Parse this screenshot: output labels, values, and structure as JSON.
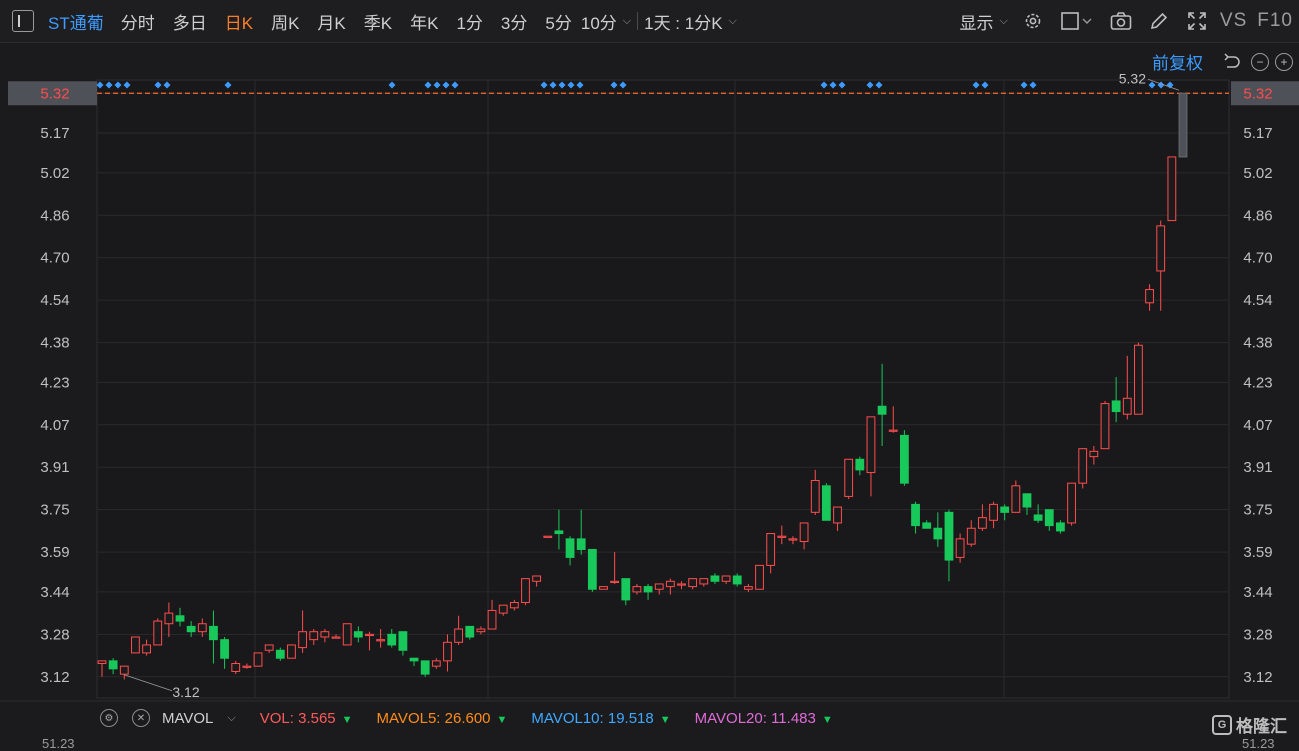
{
  "toolbar": {
    "stock_name": "ST通葡",
    "tabs": [
      "分时",
      "多日",
      "日K",
      "周K",
      "月K",
      "季K",
      "年K",
      "1分",
      "3分",
      "5分",
      "10分"
    ],
    "active_tab": "日K",
    "range_dropdown": "1天 : 1分K",
    "display_dropdown": "显示",
    "vs_label": "VS",
    "f10_label": "F10",
    "adjust_label": "前复权"
  },
  "colors": {
    "up": "#ff4d4d",
    "down": "#18c85a",
    "ma_vol": "#ff8c1a",
    "mavol10": "#3fa8ff",
    "mavol20": "#e06bd8",
    "price_line": "#ff6a2b",
    "event_marker": "#3d9bff"
  },
  "chart_data": {
    "type": "candlestick",
    "ylim": [
      3.04,
      5.37
    ],
    "yticks": [
      "5.32",
      "5.17",
      "5.02",
      "4.86",
      "4.70",
      "4.54",
      "4.38",
      "4.23",
      "4.07",
      "3.91",
      "3.75",
      "3.59",
      "3.44",
      "3.28",
      "3.12"
    ],
    "current_price": "5.32",
    "high_label": "5.32",
    "low_label": "3.12",
    "candles": [
      [
        3.17,
        3.18,
        3.12,
        3.17
      ],
      [
        3.18,
        3.15,
        3.13,
        3.19
      ],
      [
        3.13,
        3.16,
        3.11,
        3.16
      ],
      [
        3.21,
        3.27,
        3.21,
        3.27
      ],
      [
        3.21,
        3.24,
        3.2,
        3.26
      ],
      [
        3.24,
        3.33,
        3.24,
        3.34
      ],
      [
        3.32,
        3.36,
        3.27,
        3.4
      ],
      [
        3.35,
        3.33,
        3.31,
        3.38
      ],
      [
        3.31,
        3.29,
        3.27,
        3.33
      ],
      [
        3.29,
        3.32,
        3.27,
        3.34
      ],
      [
        3.31,
        3.26,
        3.17,
        3.37
      ],
      [
        3.26,
        3.19,
        3.15,
        3.27
      ],
      [
        3.14,
        3.17,
        3.13,
        3.18
      ],
      [
        3.16,
        3.16,
        3.15,
        3.17
      ],
      [
        3.16,
        3.21,
        3.16,
        3.21
      ],
      [
        3.22,
        3.24,
        3.21,
        3.24
      ],
      [
        3.22,
        3.19,
        3.18,
        3.23
      ],
      [
        3.19,
        3.24,
        3.19,
        3.24
      ],
      [
        3.23,
        3.29,
        3.21,
        3.37
      ],
      [
        3.26,
        3.29,
        3.24,
        3.3
      ],
      [
        3.27,
        3.29,
        3.25,
        3.3
      ],
      [
        3.27,
        3.27,
        3.27,
        3.28
      ],
      [
        3.24,
        3.32,
        3.24,
        3.32
      ],
      [
        3.29,
        3.27,
        3.25,
        3.31
      ],
      [
        3.28,
        3.28,
        3.22,
        3.29
      ],
      [
        3.26,
        3.26,
        3.23,
        3.3
      ],
      [
        3.28,
        3.24,
        3.23,
        3.3
      ],
      [
        3.29,
        3.22,
        3.2,
        3.29
      ],
      [
        3.19,
        3.18,
        3.16,
        3.19
      ],
      [
        3.18,
        3.13,
        3.12,
        3.18
      ],
      [
        3.16,
        3.18,
        3.15,
        3.19
      ],
      [
        3.18,
        3.25,
        3.14,
        3.28
      ],
      [
        3.25,
        3.3,
        3.24,
        3.35
      ],
      [
        3.31,
        3.27,
        3.26,
        3.31
      ],
      [
        3.29,
        3.3,
        3.28,
        3.31
      ],
      [
        3.3,
        3.37,
        3.3,
        3.41
      ],
      [
        3.36,
        3.39,
        3.35,
        3.39
      ],
      [
        3.38,
        3.4,
        3.37,
        3.41
      ],
      [
        3.4,
        3.49,
        3.39,
        3.49
      ],
      [
        3.48,
        3.5,
        3.46,
        3.5
      ],
      [
        3.65,
        3.65,
        3.65,
        3.65
      ],
      [
        3.67,
        3.66,
        3.6,
        3.75
      ],
      [
        3.64,
        3.57,
        3.54,
        3.65
      ],
      [
        3.64,
        3.6,
        3.58,
        3.75
      ],
      [
        3.6,
        3.45,
        3.44,
        3.6
      ],
      [
        3.45,
        3.46,
        3.45,
        3.46
      ],
      [
        3.48,
        3.48,
        3.47,
        3.59
      ],
      [
        3.49,
        3.41,
        3.39,
        3.49
      ],
      [
        3.44,
        3.46,
        3.43,
        3.47
      ],
      [
        3.46,
        3.44,
        3.41,
        3.47
      ],
      [
        3.45,
        3.47,
        3.43,
        3.47
      ],
      [
        3.46,
        3.48,
        3.43,
        3.49
      ],
      [
        3.47,
        3.47,
        3.45,
        3.48
      ],
      [
        3.46,
        3.49,
        3.45,
        3.49
      ],
      [
        3.47,
        3.49,
        3.46,
        3.49
      ],
      [
        3.5,
        3.48,
        3.47,
        3.51
      ],
      [
        3.48,
        3.5,
        3.47,
        3.5
      ],
      [
        3.5,
        3.47,
        3.46,
        3.51
      ],
      [
        3.45,
        3.46,
        3.44,
        3.47
      ],
      [
        3.45,
        3.54,
        3.45,
        3.54
      ],
      [
        3.54,
        3.66,
        3.51,
        3.66
      ],
      [
        3.65,
        3.65,
        3.62,
        3.69
      ],
      [
        3.64,
        3.64,
        3.62,
        3.65
      ],
      [
        3.63,
        3.7,
        3.6,
        3.7
      ],
      [
        3.74,
        3.86,
        3.73,
        3.9
      ],
      [
        3.84,
        3.71,
        3.71,
        3.85
      ],
      [
        3.7,
        3.76,
        3.67,
        3.76
      ],
      [
        3.8,
        3.94,
        3.79,
        3.94
      ],
      [
        3.94,
        3.9,
        3.88,
        3.95
      ],
      [
        3.89,
        4.1,
        3.8,
        4.1
      ],
      [
        4.14,
        4.11,
        3.99,
        4.3
      ],
      [
        4.05,
        4.05,
        4.04,
        4.14
      ],
      [
        4.03,
        3.85,
        3.84,
        4.05
      ],
      [
        3.77,
        3.69,
        3.66,
        3.78
      ],
      [
        3.7,
        3.68,
        3.68,
        3.71
      ],
      [
        3.68,
        3.64,
        3.61,
        3.74
      ],
      [
        3.74,
        3.56,
        3.48,
        3.75
      ],
      [
        3.57,
        3.64,
        3.55,
        3.66
      ],
      [
        3.62,
        3.68,
        3.61,
        3.71
      ],
      [
        3.68,
        3.72,
        3.67,
        3.77
      ],
      [
        3.71,
        3.77,
        3.68,
        3.78
      ],
      [
        3.76,
        3.74,
        3.71,
        3.77
      ],
      [
        3.74,
        3.84,
        3.74,
        3.86
      ],
      [
        3.81,
        3.76,
        3.73,
        3.81
      ],
      [
        3.73,
        3.71,
        3.7,
        3.77
      ],
      [
        3.75,
        3.69,
        3.67,
        3.75
      ],
      [
        3.7,
        3.67,
        3.66,
        3.71
      ],
      [
        3.7,
        3.85,
        3.69,
        3.85
      ],
      [
        3.85,
        3.98,
        3.83,
        3.98
      ],
      [
        3.95,
        3.97,
        3.92,
        3.99
      ],
      [
        3.98,
        4.15,
        3.98,
        4.16
      ],
      [
        4.16,
        4.12,
        4.08,
        4.25
      ],
      [
        4.11,
        4.17,
        4.09,
        4.33
      ],
      [
        4.11,
        4.37,
        4.11,
        4.38
      ],
      [
        4.53,
        4.58,
        4.5,
        4.6
      ],
      [
        4.65,
        4.82,
        4.5,
        4.84
      ],
      [
        4.84,
        5.08,
        4.84,
        5.08
      ],
      [
        5.08,
        5.32,
        5.08,
        5.32
      ]
    ],
    "event_marker_groups": [
      4,
      2,
      1,
      1,
      4,
      5,
      2,
      3,
      2,
      2,
      2,
      3
    ],
    "volume_indicator": {
      "name": "MAVOL",
      "items": [
        {
          "label": "VOL:",
          "value": "3.565"
        },
        {
          "label": "MAVOL5:",
          "value": "26.600"
        },
        {
          "label": "MAVOL10:",
          "value": "19.518"
        },
        {
          "label": "MAVOL20:",
          "value": "11.483"
        }
      ],
      "axis_top_label": "51.23"
    }
  },
  "watermark": "格隆汇",
  "icons": {
    "sidebar": "sidebar-icon",
    "settings": "gear-icon",
    "layout": "layout-icon",
    "camera": "camera-icon",
    "draw": "pen-icon",
    "fullscreen": "fullscreen-icon",
    "undo": "undo-icon",
    "zoom_out": "zoom-out-icon",
    "zoom_in": "zoom-in-icon"
  }
}
